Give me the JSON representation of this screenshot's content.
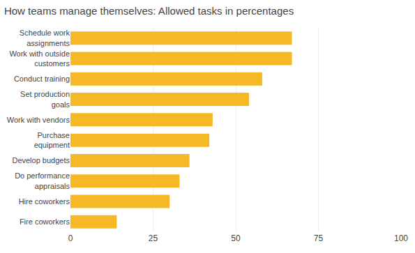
{
  "chart_data": {
    "type": "bar",
    "orientation": "horizontal",
    "title": "How teams manage themselves: Allowed tasks in percentages",
    "categories": [
      "Fire coworkers",
      "Hire coworkers",
      "Do performance\nappraisals",
      "Develop budgets",
      "Purchase\nequipment",
      "Work with vendors",
      "Set production\ngoals",
      "Conduct training",
      "Work with outside\ncustomers",
      "Schedule work\nassignments"
    ],
    "values": [
      14,
      30,
      33,
      36,
      42,
      43,
      54,
      58,
      67,
      67
    ],
    "color": "#F5B827",
    "xlim": [
      0,
      100
    ],
    "xticks": [
      0,
      25,
      50,
      75,
      100
    ],
    "grid": true
  }
}
